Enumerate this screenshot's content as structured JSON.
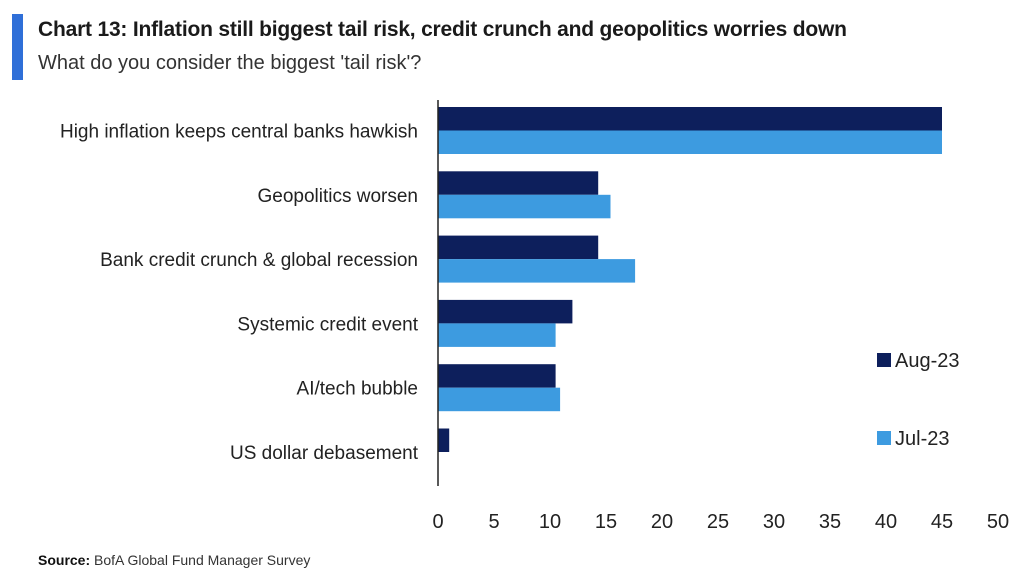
{
  "header": {
    "title": "Chart 13: Inflation still biggest tail risk, credit crunch and geopolitics worries down",
    "subtitle": "What do you consider the biggest 'tail risk'?"
  },
  "footer": {
    "source_label": "Source:",
    "source_text": "BofA Global Fund Manager Survey"
  },
  "colors": {
    "aug": "#0d1f5c",
    "jul": "#3d9be0",
    "accent": "#2f6fd8"
  },
  "chart_data": {
    "type": "bar",
    "orientation": "horizontal",
    "categories": [
      "High inflation keeps central banks hawkish",
      "Geopolitics worsen",
      "Bank credit crunch & global recession",
      "Systemic credit event",
      "AI/tech bubble",
      "US dollar debasement"
    ],
    "series": [
      {
        "name": "Aug-23",
        "values": [
          45,
          14.3,
          14.3,
          12,
          10.5,
          1
        ]
      },
      {
        "name": "Jul-23",
        "values": [
          45,
          15.4,
          17.6,
          10.5,
          10.9,
          0
        ]
      }
    ],
    "xlim": [
      0,
      50
    ],
    "xticks": [
      "0",
      "5",
      "10",
      "15",
      "20",
      "25",
      "30",
      "35",
      "40",
      "45",
      "50"
    ],
    "legend_position": "right",
    "grid": false
  }
}
